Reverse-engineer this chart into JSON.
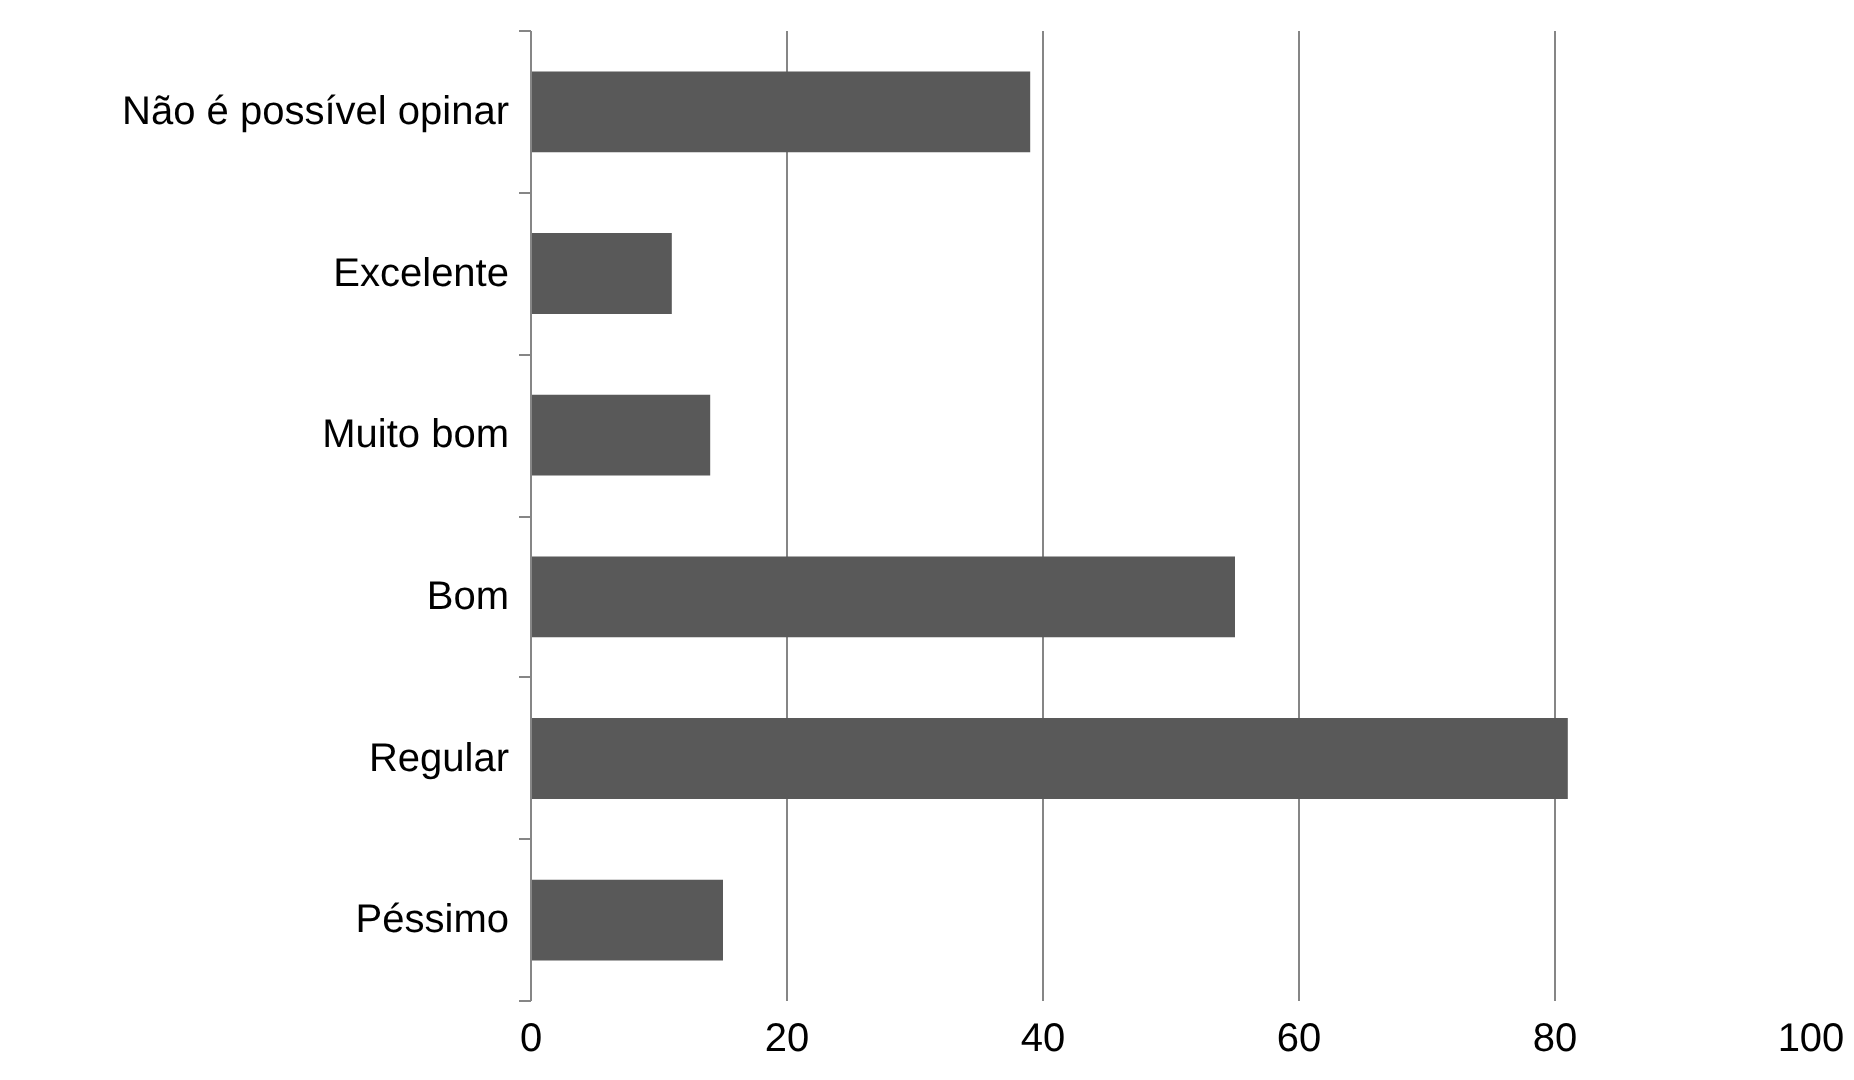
{
  "chart_data": {
    "type": "bar",
    "orientation": "horizontal",
    "categories": [
      "Não é possível opinar",
      "Excelente",
      "Muito bom",
      "Bom",
      "Regular",
      "Péssimo"
    ],
    "values": [
      39,
      11,
      14,
      55,
      81,
      15
    ],
    "color": "#595959",
    "xlim": [
      0,
      100
    ],
    "xticks": [
      0,
      20,
      40,
      60,
      80,
      100
    ],
    "grid": "x"
  }
}
